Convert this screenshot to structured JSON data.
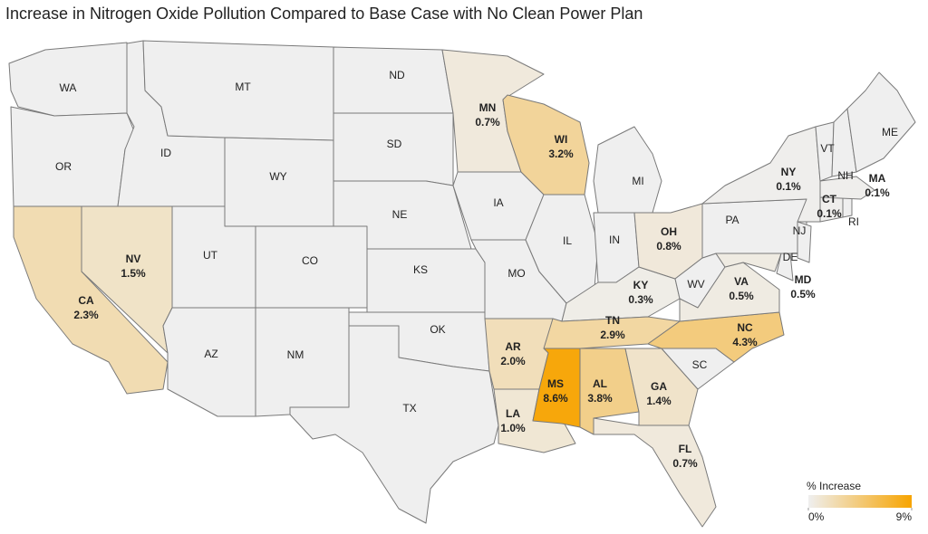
{
  "chart_data": {
    "type": "choropleth",
    "title": "Increase in Nitrogen Oxide Pollution Compared to Base Case with No Clean Power Plan",
    "regions": [
      "WA",
      "OR",
      "CA",
      "NV",
      "ID",
      "MT",
      "WY",
      "UT",
      "AZ",
      "CO",
      "NM",
      "ND",
      "SD",
      "NE",
      "KS",
      "OK",
      "TX",
      "MN",
      "IA",
      "MO",
      "AR",
      "LA",
      "WI",
      "IL",
      "MS",
      "MI",
      "IN",
      "KY",
      "TN",
      "AL",
      "GA",
      "FL",
      "SC",
      "NC",
      "OH",
      "WV",
      "VA",
      "PA",
      "MD",
      "DE",
      "NJ",
      "NY",
      "CT",
      "RI",
      "MA",
      "VT",
      "NH",
      "ME"
    ],
    "values": [
      null,
      null,
      2.3,
      1.5,
      null,
      null,
      null,
      null,
      null,
      null,
      null,
      null,
      null,
      null,
      null,
      null,
      null,
      0.7,
      null,
      null,
      2.0,
      1.0,
      3.2,
      null,
      8.6,
      null,
      null,
      0.3,
      2.9,
      3.8,
      1.4,
      0.7,
      null,
      4.3,
      0.8,
      null,
      0.5,
      null,
      0.5,
      null,
      null,
      0.1,
      0.1,
      null,
      0.1,
      null,
      null,
      null
    ],
    "value_labels": [
      null,
      null,
      "2.3%",
      "1.5%",
      null,
      null,
      null,
      null,
      null,
      null,
      null,
      null,
      null,
      null,
      null,
      null,
      null,
      "0.7%",
      null,
      null,
      "2.0%",
      "1.0%",
      "3.2%",
      null,
      "8.6%",
      null,
      null,
      "0.3%",
      "2.9%",
      "3.8%",
      "1.4%",
      "0.7%",
      null,
      "4.3%",
      "0.8%",
      null,
      "0.5%",
      null,
      "0.5%",
      null,
      null,
      "0.1%",
      "0.1%",
      null,
      "0.1%",
      null,
      null,
      null
    ],
    "color_scale": [
      "#efefef",
      "#f7a400"
    ],
    "clim": [
      0,
      9
    ],
    "legend": {
      "title": "% Increase",
      "ticks": [
        {
          "value": 0,
          "label": "0%"
        },
        {
          "value": 9,
          "label": "9%"
        }
      ]
    }
  }
}
